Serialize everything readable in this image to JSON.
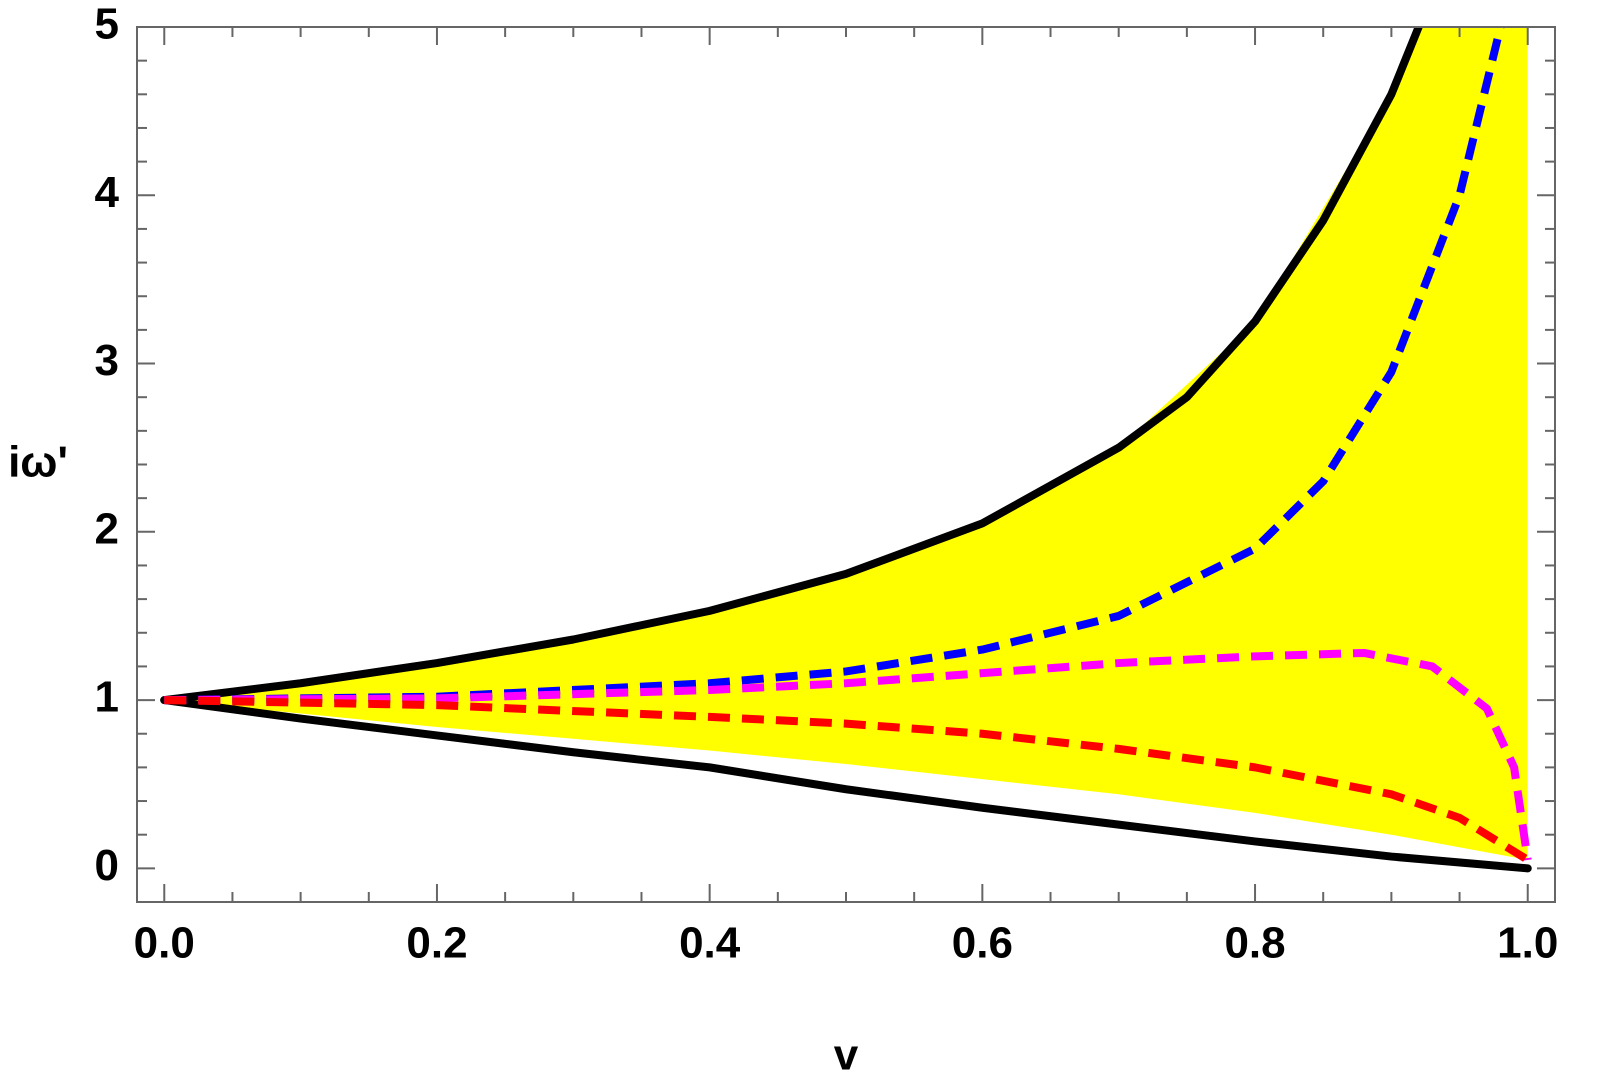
{
  "chart_data": {
    "type": "line",
    "xlabel": "v",
    "ylabel": "iω'",
    "xlim": [
      -0.02,
      1.02
    ],
    "ylim": [
      -0.2,
      5
    ],
    "xticks": [
      {
        "value": 0,
        "label": "0.0"
      },
      0.2,
      0.4,
      0.6,
      0.8,
      {
        "value": 1,
        "label": "1.0"
      }
    ],
    "yticks": [
      0,
      1,
      2,
      3,
      4,
      5
    ],
    "minor_xticks": [
      0.05,
      0.1,
      0.15,
      0.25,
      0.3,
      0.35,
      0.45,
      0.5,
      0.55,
      0.65,
      0.7,
      0.75,
      0.85,
      0.9,
      0.95
    ],
    "minor_yticks": [
      0.2,
      0.4,
      0.6,
      0.8,
      1.2,
      1.4,
      1.6,
      1.8,
      2.2,
      2.4,
      2.6,
      2.8,
      3.2,
      3.4,
      3.6,
      3.8,
      4.2,
      4.4,
      4.6,
      4.8
    ],
    "band": {
      "color": "#ffff00",
      "x": [
        0,
        0.1,
        0.2,
        0.3,
        0.4,
        0.5,
        0.6,
        0.7,
        0.8,
        0.9,
        0.92,
        1.0
      ],
      "upper": [
        1,
        1.1,
        1.22,
        1.36,
        1.53,
        1.75,
        2.05,
        2.5,
        3.25,
        4.6,
        5,
        5
      ],
      "lower": [
        1,
        0.92,
        0.84,
        0.77,
        0.7,
        0.62,
        0.53,
        0.44,
        0.33,
        0.2,
        0.17,
        0.05
      ]
    },
    "series": [
      {
        "color": "#000000",
        "dashed": false,
        "x": [
          0,
          0.1,
          0.2,
          0.3,
          0.4,
          0.5,
          0.6,
          0.7,
          0.75,
          0.8,
          0.85,
          0.9,
          0.92
        ],
        "values": [
          1,
          1.1,
          1.22,
          1.36,
          1.53,
          1.75,
          2.05,
          2.5,
          2.8,
          3.25,
          3.85,
          4.6,
          5.0
        ]
      },
      {
        "color": "#000000",
        "dashed": false,
        "x": [
          0,
          0.1,
          0.2,
          0.3,
          0.4,
          0.5,
          0.6,
          0.7,
          0.8,
          0.9,
          1.0
        ],
        "values": [
          1,
          0.89,
          0.79,
          0.69,
          0.6,
          0.47,
          0.36,
          0.26,
          0.16,
          0.07,
          0
        ]
      },
      {
        "color": "#0000ff",
        "dashed": true,
        "x": [
          0,
          0.2,
          0.4,
          0.5,
          0.6,
          0.7,
          0.8,
          0.85,
          0.9,
          0.95,
          0.98
        ],
        "values": [
          1,
          1.02,
          1.1,
          1.17,
          1.3,
          1.5,
          1.9,
          2.3,
          2.95,
          4.0,
          5.0
        ]
      },
      {
        "color": "#ff00ff",
        "dashed": true,
        "x": [
          0,
          0.2,
          0.4,
          0.5,
          0.6,
          0.7,
          0.8,
          0.88,
          0.93,
          0.97,
          0.99,
          1.0
        ],
        "values": [
          1,
          1.01,
          1.06,
          1.1,
          1.16,
          1.22,
          1.26,
          1.28,
          1.2,
          0.95,
          0.6,
          0.05
        ]
      },
      {
        "color": "#ff0000",
        "dashed": true,
        "x": [
          0,
          0.2,
          0.4,
          0.5,
          0.6,
          0.7,
          0.8,
          0.9,
          0.95,
          1.0
        ],
        "values": [
          1,
          0.97,
          0.9,
          0.86,
          0.8,
          0.71,
          0.6,
          0.44,
          0.3,
          0.05
        ]
      }
    ]
  }
}
